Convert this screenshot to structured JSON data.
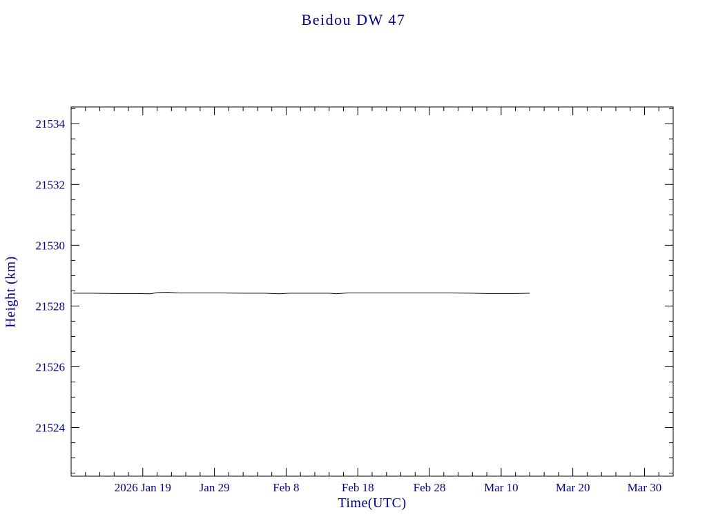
{
  "chart_data": {
    "type": "line",
    "title": "Beidou DW 47",
    "xlabel": "Time(UTC)",
    "ylabel": "Height (km)",
    "colors": {
      "axis_text": "#00008B",
      "frame": "#000000",
      "background": "#ffffff"
    },
    "x_axis": {
      "unit": "days since 2026 Jan 9",
      "lim": [
        0,
        84
      ],
      "major_ticks": [
        10,
        20,
        30,
        40,
        50,
        60,
        70,
        80
      ],
      "tick_labels": [
        "2026 Jan 19",
        "Jan 29",
        "Feb 8",
        "Feb 18",
        "Feb 28",
        "Mar 10",
        "Mar 20",
        "Mar 30"
      ],
      "minor_step": 2,
      "grid": false
    },
    "y_axis": {
      "lim": [
        21522.4,
        21534.55
      ],
      "major_ticks": [
        21524,
        21526,
        21528,
        21530,
        21532,
        21534
      ],
      "tick_labels": [
        "21524",
        "21526",
        "21528",
        "21530",
        "21532",
        "21534"
      ],
      "minor_step": 0.5,
      "grid": false
    },
    "legend": "none",
    "series": [
      {
        "name": "height",
        "color": "#000000",
        "points": [
          [
            0.3,
            21528.42
          ],
          [
            3,
            21528.42
          ],
          [
            6,
            21528.41
          ],
          [
            9,
            21528.41
          ],
          [
            11,
            21528.4
          ],
          [
            12,
            21528.44
          ],
          [
            13.5,
            21528.45
          ],
          [
            15,
            21528.43
          ],
          [
            18,
            21528.43
          ],
          [
            21,
            21528.43
          ],
          [
            24,
            21528.42
          ],
          [
            27,
            21528.42
          ],
          [
            29,
            21528.4
          ],
          [
            30.5,
            21528.42
          ],
          [
            33,
            21528.42
          ],
          [
            36,
            21528.42
          ],
          [
            37,
            21528.4
          ],
          [
            38.5,
            21528.43
          ],
          [
            41,
            21528.43
          ],
          [
            44,
            21528.43
          ],
          [
            47,
            21528.43
          ],
          [
            50,
            21528.43
          ],
          [
            53,
            21528.43
          ],
          [
            56,
            21528.42
          ],
          [
            58,
            21528.41
          ],
          [
            60,
            21528.41
          ],
          [
            62,
            21528.41
          ],
          [
            64,
            21528.42
          ]
        ]
      }
    ]
  }
}
